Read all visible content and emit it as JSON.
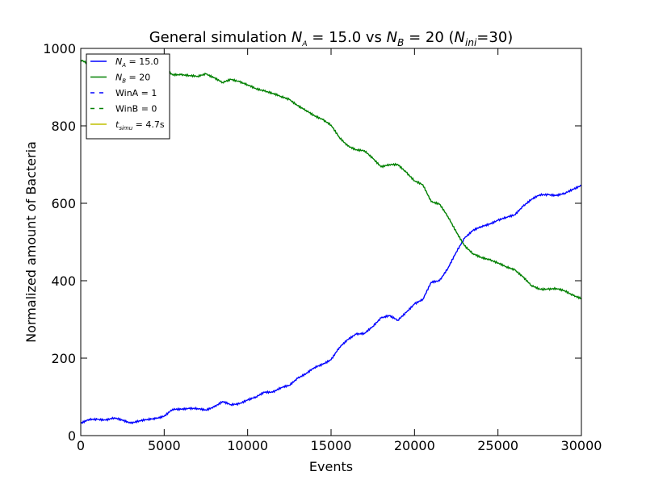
{
  "chart_data": {
    "type": "line",
    "title": {
      "prefix": "General simulation ",
      "na_symbol": "N",
      "na_sub": "A",
      "na_value": " = 15.0 vs ",
      "nb_symbol": "N",
      "nb_sub": "B",
      "nb_value": " = 20 (",
      "nini_symbol": "N",
      "nini_sub": "ini",
      "nini_value": "=30)"
    },
    "xlabel": "Events",
    "ylabel": "Normalized amount of Bacteria",
    "xlim": [
      0,
      30000
    ],
    "ylim": [
      0,
      1000
    ],
    "xticks": [
      0,
      5000,
      10000,
      15000,
      20000,
      25000,
      30000
    ],
    "yticks": [
      0,
      200,
      400,
      600,
      800,
      1000
    ],
    "grid": false,
    "legend_position": "top-left",
    "series": [
      {
        "name": "N_A = 15.0",
        "color": "#0000ff",
        "x": [
          0,
          500,
          1000,
          1500,
          2000,
          2500,
          3000,
          3500,
          4000,
          4500,
          5000,
          5500,
          6000,
          6500,
          7000,
          7500,
          8000,
          8500,
          9000,
          9500,
          10000,
          10500,
          11000,
          11500,
          12000,
          12500,
          13000,
          13500,
          14000,
          14500,
          15000,
          15500,
          16000,
          16500,
          17000,
          17500,
          18000,
          18500,
          19000,
          19500,
          20000,
          20500,
          21000,
          21500,
          22000,
          22500,
          23000,
          23500,
          24000,
          24500,
          25000,
          25500,
          26000,
          26500,
          27000,
          27500,
          28000,
          28500,
          29000,
          29500,
          30000
        ],
        "y": [
          32,
          42,
          42,
          40,
          46,
          40,
          32,
          38,
          42,
          44,
          50,
          68,
          68,
          70,
          70,
          66,
          74,
          88,
          80,
          82,
          92,
          100,
          112,
          112,
          124,
          130,
          148,
          160,
          176,
          184,
          196,
          228,
          248,
          262,
          264,
          282,
          304,
          310,
          298,
          318,
          340,
          352,
          396,
          400,
          432,
          474,
          510,
          530,
          540,
          546,
          556,
          564,
          570,
          592,
          610,
          622,
          622,
          620,
          626,
          636,
          646
        ]
      },
      {
        "name": "N_B = 20",
        "color": "#008000",
        "x": [
          0,
          500,
          1000,
          1500,
          2000,
          2500,
          3000,
          3500,
          4000,
          4500,
          5000,
          5500,
          6000,
          6500,
          7000,
          7500,
          8000,
          8500,
          9000,
          9500,
          10000,
          10500,
          11000,
          11500,
          12000,
          12500,
          13000,
          13500,
          14000,
          14500,
          15000,
          15500,
          16000,
          16500,
          17000,
          17500,
          18000,
          18500,
          19000,
          19500,
          20000,
          20500,
          21000,
          21500,
          22000,
          22500,
          23000,
          23500,
          24000,
          24500,
          25000,
          25500,
          26000,
          26500,
          27000,
          27500,
          28000,
          28500,
          29000,
          29500,
          30000
        ],
        "y": [
          970,
          960,
          958,
          960,
          950,
          960,
          966,
          962,
          958,
          952,
          948,
          932,
          932,
          930,
          928,
          934,
          924,
          912,
          920,
          914,
          906,
          896,
          890,
          884,
          876,
          868,
          852,
          840,
          826,
          816,
          802,
          770,
          748,
          738,
          736,
          716,
          694,
          700,
          700,
          680,
          658,
          648,
          604,
          598,
          566,
          526,
          490,
          470,
          460,
          454,
          446,
          436,
          428,
          410,
          388,
          378,
          378,
          380,
          374,
          362,
          354
        ]
      }
    ],
    "legend": [
      {
        "symbol": "N",
        "sub": "A",
        "text": " = 15.0",
        "color": "#0000ff",
        "style": "solid"
      },
      {
        "symbol": "N",
        "sub": "B",
        "text": " = 20",
        "color": "#008000",
        "style": "solid"
      },
      {
        "symbol": "",
        "sub": "",
        "text": "WinA = 1",
        "color": "#0000ff",
        "style": "dashed"
      },
      {
        "symbol": "",
        "sub": "",
        "text": "WinB = 0",
        "color": "#008000",
        "style": "dashed"
      },
      {
        "symbol": "t",
        "sub": "simu",
        "text": " = 4.7s",
        "color": "#bfbf00",
        "style": "solid"
      }
    ]
  }
}
